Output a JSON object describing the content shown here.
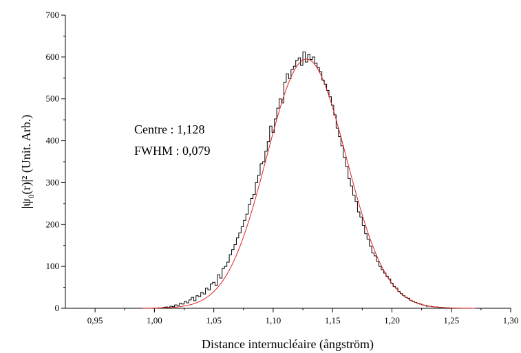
{
  "chart_data": {
    "type": "line",
    "title": "",
    "xlabel": "Distance internucléaire (ångström)",
    "ylabel_main": "|ψ",
    "ylabel_sub": "0",
    "ylabel_rest": "(r)|²  (Unit. Arb.)",
    "xlim": [
      0.925,
      1.3
    ],
    "ylim": [
      0,
      700
    ],
    "xticks": [
      0.95,
      1.0,
      1.05,
      1.1,
      1.15,
      1.2,
      1.25,
      1.3
    ],
    "xtick_labels": [
      "0,95",
      "1,00",
      "1,05",
      "1,10",
      "1,15",
      "1,20",
      "1,25",
      "1,30"
    ],
    "yticks": [
      0,
      100,
      200,
      300,
      400,
      500,
      600,
      700
    ],
    "ytick_labels": [
      "0",
      "100",
      "200",
      "300",
      "400",
      "500",
      "600",
      "700"
    ],
    "grid": false,
    "annotations": [
      "Centre  :  1,128",
      "FWHM : 0,079"
    ],
    "series": [
      {
        "kind": "histogram-step",
        "color": "#000000",
        "bin_width": 0.002,
        "x": [
          0.97,
          0.972,
          0.974,
          0.976,
          0.978,
          0.98,
          0.982,
          0.984,
          0.986,
          0.988,
          0.99,
          0.992,
          0.994,
          0.996,
          0.998,
          1.0,
          1.002,
          1.004,
          1.006,
          1.008,
          1.01,
          1.012,
          1.014,
          1.016,
          1.018,
          1.02,
          1.022,
          1.024,
          1.026,
          1.028,
          1.03,
          1.032,
          1.034,
          1.036,
          1.038,
          1.04,
          1.042,
          1.044,
          1.046,
          1.048,
          1.05,
          1.052,
          1.054,
          1.056,
          1.058,
          1.06,
          1.062,
          1.064,
          1.066,
          1.068,
          1.07,
          1.072,
          1.074,
          1.076,
          1.078,
          1.08,
          1.082,
          1.084,
          1.086,
          1.088,
          1.09,
          1.092,
          1.094,
          1.096,
          1.098,
          1.1,
          1.102,
          1.104,
          1.106,
          1.108,
          1.11,
          1.112,
          1.114,
          1.116,
          1.118,
          1.12,
          1.122,
          1.124,
          1.126,
          1.128,
          1.13,
          1.132,
          1.134,
          1.136,
          1.138,
          1.14,
          1.142,
          1.144,
          1.146,
          1.148,
          1.15,
          1.152,
          1.154,
          1.156,
          1.158,
          1.16,
          1.162,
          1.164,
          1.166,
          1.168,
          1.17,
          1.172,
          1.174,
          1.176,
          1.178,
          1.18,
          1.182,
          1.184,
          1.186,
          1.188,
          1.19,
          1.192,
          1.194,
          1.196,
          1.198,
          1.2,
          1.202,
          1.204,
          1.206,
          1.208,
          1.21,
          1.212,
          1.214,
          1.216,
          1.218,
          1.22,
          1.222,
          1.224,
          1.226,
          1.228,
          1.23,
          1.232,
          1.234,
          1.236,
          1.238,
          1.24,
          1.242,
          1.244,
          1.246,
          1.248,
          1.25,
          1.252,
          1.254,
          1.256,
          1.258
        ],
        "values": [
          0,
          0,
          0,
          0,
          0,
          0,
          0,
          0,
          0,
          0,
          0,
          0,
          0,
          0,
          0,
          0,
          0,
          1,
          1,
          2,
          3,
          2,
          5,
          4,
          8,
          7,
          12,
          10,
          16,
          13,
          20,
          26,
          18,
          30,
          28,
          38,
          34,
          48,
          44,
          58,
          62,
          55,
          80,
          72,
          95,
          100,
          110,
          128,
          140,
          152,
          168,
          180,
          195,
          210,
          225,
          248,
          262,
          272,
          300,
          318,
          345,
          350,
          375,
          398,
          435,
          420,
          452,
          478,
          500,
          490,
          540,
          560,
          548,
          570,
          578,
          592,
          598,
          580,
          612,
          588,
          606,
          594,
          600,
          585,
          575,
          565,
          545,
          535,
          520,
          505,
          485,
          462,
          430,
          410,
          388,
          360,
          338,
          310,
          292,
          270,
          255,
          230,
          218,
          198,
          178,
          165,
          148,
          132,
          125,
          112,
          100,
          92,
          84,
          76,
          70,
          60,
          52,
          48,
          40,
          35,
          30,
          26,
          24,
          19,
          16,
          14,
          12,
          10,
          8,
          7,
          5,
          5,
          4,
          3,
          3,
          2,
          2,
          1,
          1,
          1,
          0,
          0,
          0,
          0,
          0
        ]
      },
      {
        "kind": "gaussian-fit",
        "color": "#e0211c",
        "center": 1.128,
        "fwhm": 0.079,
        "amplitude": 595
      }
    ]
  }
}
